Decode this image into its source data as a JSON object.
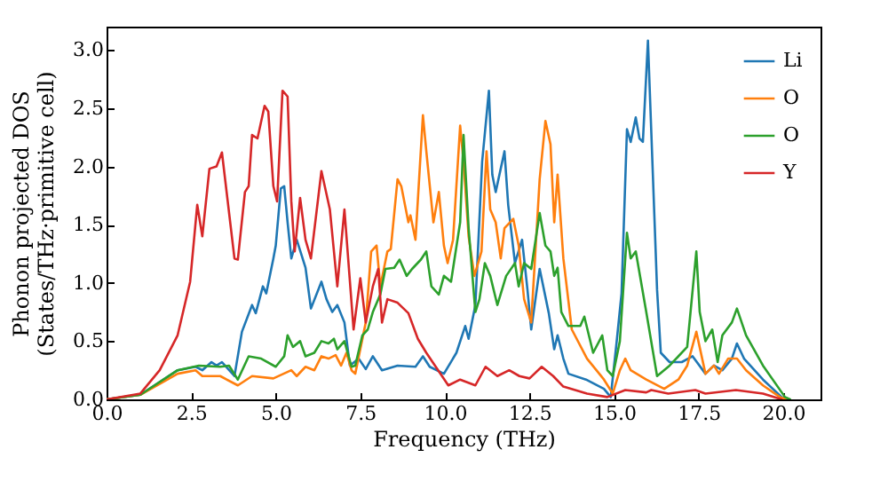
{
  "chart_data": {
    "type": "line",
    "xlabel": "Frequency (THz)",
    "ylabel": "Phonon projected DOS\n(States/THz·primitive cell)",
    "xlim": [
      0,
      21.1
    ],
    "ylim": [
      0,
      3.2
    ],
    "xticks": [
      {
        "value": 0,
        "label": "0.0"
      },
      {
        "value": 2.5,
        "label": "2.5"
      },
      {
        "value": 5,
        "label": "5.0"
      },
      {
        "value": 7.5,
        "label": "7.5"
      },
      {
        "value": 10,
        "label": "10.0"
      },
      {
        "value": 12.5,
        "label": "12.5"
      },
      {
        "value": 15,
        "label": "15.0"
      },
      {
        "value": 17.5,
        "label": "17.5"
      },
      {
        "value": 20,
        "label": "20.0"
      }
    ],
    "yticks": [
      {
        "value": 0,
        "label": "0.0"
      },
      {
        "value": 0.5,
        "label": "0.5"
      },
      {
        "value": 1,
        "label": "1.0"
      },
      {
        "value": 1.5,
        "label": "1.5"
      },
      {
        "value": 2,
        "label": "2.0"
      },
      {
        "value": 2.5,
        "label": "2.5"
      },
      {
        "value": 3,
        "label": "3.0"
      }
    ],
    "grid": false,
    "legend": "top right",
    "series": [
      {
        "name": "Li",
        "color": "#1f77b4",
        "x": [
          0,
          1.0,
          2.1,
          2.63,
          2.83,
          3.1,
          3.25,
          3.41,
          3.78,
          4.0,
          4.3,
          4.41,
          4.62,
          4.72,
          4.93,
          5.0,
          5.15,
          5.25,
          5.35,
          5.46,
          5.62,
          5.88,
          6.04,
          6.35,
          6.5,
          6.67,
          6.82,
          7.03,
          7.19,
          7.45,
          7.66,
          7.87,
          8.14,
          8.6,
          9.13,
          9.35,
          9.55,
          9.97,
          10.34,
          10.6,
          10.7,
          10.9,
          11.1,
          11.3,
          11.4,
          11.5,
          11.76,
          11.87,
          12.07,
          12.28,
          12.44,
          12.55,
          12.8,
          13.07,
          13.23,
          13.33,
          13.5,
          13.65,
          14.17,
          14.7,
          14.9,
          15.07,
          15.22,
          15.38,
          15.49,
          15.64,
          15.75,
          15.85,
          16.0,
          16.1,
          16.27,
          16.38,
          16.64,
          17.0,
          17.32,
          17.7,
          17.95,
          18.2,
          18.48,
          18.63,
          18.84,
          19.4,
          19.95,
          20.1
        ],
        "values": [
          0,
          0.04,
          0.25,
          0.28,
          0.25,
          0.32,
          0.29,
          0.32,
          0.2,
          0.58,
          0.81,
          0.74,
          0.97,
          0.91,
          1.21,
          1.32,
          1.81,
          1.83,
          1.52,
          1.21,
          1.37,
          1.13,
          0.78,
          1.01,
          0.86,
          0.75,
          0.81,
          0.66,
          0.29,
          0.35,
          0.26,
          0.37,
          0.25,
          0.29,
          0.28,
          0.37,
          0.28,
          0.22,
          0.4,
          0.63,
          0.52,
          0.81,
          2.04,
          2.65,
          1.93,
          1.78,
          2.13,
          1.67,
          1.17,
          1.37,
          0.94,
          0.6,
          1.12,
          0.74,
          0.43,
          0.55,
          0.35,
          0.22,
          0.17,
          0.09,
          0.02,
          0.48,
          0.91,
          2.32,
          2.21,
          2.42,
          2.24,
          2.21,
          3.08,
          2.29,
          0.94,
          0.4,
          0.32,
          0.32,
          0.37,
          0.22,
          0.29,
          0.25,
          0.35,
          0.48,
          0.35,
          0.17,
          0.02,
          0
        ]
      },
      {
        "name": "O",
        "color": "#ff7f0e",
        "x": [
          0,
          1.0,
          2.1,
          2.63,
          2.83,
          3.36,
          3.88,
          4.3,
          4.93,
          5.46,
          5.62,
          5.88,
          6.14,
          6.35,
          6.56,
          6.77,
          6.93,
          7.09,
          7.24,
          7.35,
          7.66,
          7.82,
          7.98,
          8.09,
          8.3,
          8.4,
          8.6,
          8.71,
          8.92,
          8.98,
          9.13,
          9.35,
          9.45,
          9.66,
          9.82,
          9.97,
          10.08,
          10.24,
          10.45,
          10.55,
          10.7,
          10.87,
          11.08,
          11.23,
          11.34,
          11.5,
          11.65,
          11.76,
          12.02,
          12.18,
          12.34,
          12.55,
          12.8,
          12.97,
          13.12,
          13.23,
          13.33,
          13.5,
          13.75,
          14.2,
          14.7,
          14.96,
          15.17,
          15.33,
          15.49,
          15.95,
          16.48,
          16.9,
          17.16,
          17.43,
          17.7,
          17.95,
          18.1,
          18.37,
          18.63,
          18.9,
          19.4,
          19.9,
          20.1
        ],
        "values": [
          0,
          0.04,
          0.22,
          0.25,
          0.2,
          0.2,
          0.12,
          0.2,
          0.18,
          0.25,
          0.2,
          0.28,
          0.25,
          0.37,
          0.35,
          0.38,
          0.29,
          0.4,
          0.25,
          0.22,
          0.66,
          1.27,
          1.32,
          0.97,
          1.27,
          1.29,
          1.89,
          1.83,
          1.52,
          1.58,
          1.37,
          2.44,
          2.13,
          1.52,
          1.78,
          1.32,
          1.17,
          1.37,
          2.35,
          2.04,
          1.4,
          1.06,
          1.27,
          2.13,
          1.63,
          1.52,
          1.21,
          1.47,
          1.55,
          1.32,
          0.86,
          0.66,
          1.89,
          2.39,
          2.19,
          1.52,
          1.93,
          1.21,
          0.6,
          0.35,
          0.17,
          0.05,
          0.25,
          0.35,
          0.25,
          0.17,
          0.09,
          0.17,
          0.29,
          0.58,
          0.22,
          0.29,
          0.22,
          0.35,
          0.35,
          0.25,
          0.12,
          0.02,
          0
        ]
      },
      {
        "name": "O",
        "color": "#2ca02c",
        "x": [
          0,
          1.0,
          2.1,
          2.73,
          3.36,
          3.62,
          3.88,
          4.2,
          4.57,
          5.0,
          5.25,
          5.35,
          5.51,
          5.72,
          5.88,
          6.14,
          6.35,
          6.56,
          6.72,
          6.82,
          7.03,
          7.24,
          7.35,
          7.56,
          7.72,
          7.87,
          8.09,
          8.24,
          8.5,
          8.66,
          8.87,
          9.03,
          9.29,
          9.45,
          9.6,
          9.82,
          9.97,
          10.18,
          10.45,
          10.55,
          10.7,
          10.9,
          11.02,
          11.18,
          11.34,
          11.55,
          11.81,
          12.07,
          12.18,
          12.34,
          12.55,
          12.8,
          12.97,
          13.12,
          13.23,
          13.33,
          13.44,
          13.65,
          14.0,
          14.12,
          14.38,
          14.65,
          14.8,
          14.96,
          15.17,
          15.38,
          15.49,
          15.64,
          15.95,
          16.27,
          16.64,
          17.16,
          17.43,
          17.53,
          17.7,
          17.9,
          18.06,
          18.2,
          18.48,
          18.63,
          18.9,
          19.4,
          20.05,
          20.2
        ],
        "values": [
          0,
          0.04,
          0.25,
          0.29,
          0.28,
          0.29,
          0.17,
          0.37,
          0.35,
          0.28,
          0.37,
          0.55,
          0.45,
          0.5,
          0.37,
          0.4,
          0.5,
          0.48,
          0.52,
          0.43,
          0.5,
          0.28,
          0.29,
          0.55,
          0.6,
          0.75,
          0.9,
          1.12,
          1.13,
          1.2,
          1.06,
          1.12,
          1.2,
          1.27,
          0.97,
          0.9,
          1.06,
          1.01,
          1.52,
          2.27,
          1.47,
          0.75,
          0.86,
          1.17,
          1.06,
          0.81,
          1.06,
          1.17,
          0.97,
          1.17,
          1.12,
          1.6,
          1.32,
          1.27,
          1.06,
          1.13,
          0.75,
          0.63,
          0.63,
          0.71,
          0.4,
          0.55,
          0.25,
          0.2,
          0.5,
          1.43,
          1.21,
          1.27,
          0.75,
          0.2,
          0.29,
          0.45,
          1.27,
          0.75,
          0.5,
          0.6,
          0.32,
          0.55,
          0.66,
          0.78,
          0.55,
          0.29,
          0.02,
          0
        ]
      },
      {
        "name": "Y",
        "color": "#d62728",
        "x": [
          0,
          1.0,
          1.57,
          2.1,
          2.47,
          2.68,
          2.83,
          3.04,
          3.25,
          3.41,
          3.78,
          3.88,
          4.09,
          4.2,
          4.3,
          4.46,
          4.67,
          4.78,
          4.93,
          5.04,
          5.2,
          5.35,
          5.46,
          5.56,
          5.72,
          5.88,
          6.04,
          6.35,
          6.6,
          6.82,
          7.03,
          7.3,
          7.5,
          7.66,
          7.87,
          8.03,
          8.14,
          8.3,
          8.6,
          8.92,
          9.2,
          9.45,
          9.8,
          10.1,
          10.45,
          10.9,
          11.2,
          11.55,
          11.9,
          12.2,
          12.5,
          12.86,
          13.2,
          13.5,
          14.2,
          14.8,
          15.33,
          15.95,
          16.1,
          16.6,
          17.4,
          17.7,
          18.6,
          19.4,
          19.95
        ],
        "values": [
          0,
          0.05,
          0.25,
          0.55,
          1.01,
          1.67,
          1.4,
          1.98,
          2.0,
          2.12,
          1.21,
          1.2,
          1.78,
          1.83,
          2.27,
          2.24,
          2.52,
          2.47,
          1.83,
          1.7,
          2.65,
          2.6,
          1.7,
          1.27,
          1.73,
          1.37,
          1.21,
          1.96,
          1.63,
          0.97,
          1.63,
          0.6,
          1.04,
          0.66,
          0.97,
          1.12,
          0.66,
          0.86,
          0.83,
          0.74,
          0.52,
          0.4,
          0.25,
          0.12,
          0.17,
          0.12,
          0.28,
          0.2,
          0.25,
          0.2,
          0.18,
          0.28,
          0.2,
          0.11,
          0.05,
          0.02,
          0.08,
          0.06,
          0.08,
          0.05,
          0.08,
          0.05,
          0.08,
          0.05,
          0
        ]
      }
    ]
  }
}
